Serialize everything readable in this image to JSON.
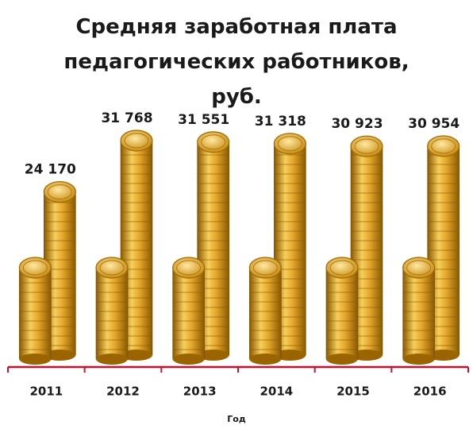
{
  "chart_data": {
    "type": "bar",
    "title": "Средняя заработная плата педагогических работников, руб.",
    "x_label": "Год",
    "categories": [
      "2011",
      "2012",
      "2013",
      "2014",
      "2015",
      "2016"
    ],
    "values": [
      24170,
      31768,
      31551,
      31318,
      30923,
      30954
    ],
    "value_labels": [
      "24 170",
      "31 768",
      "31 551",
      "31 318",
      "30 923",
      "30 954"
    ],
    "color": "#e0a82a",
    "axis_color": "#c8102e"
  }
}
